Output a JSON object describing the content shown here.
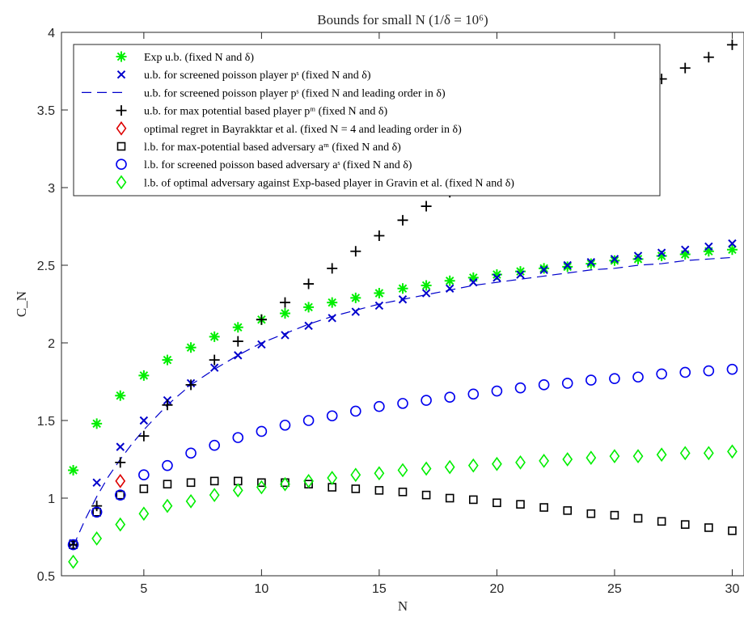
{
  "chart_data": {
    "type": "scatter",
    "title": "Bounds for small N (1/δ = 10⁶)",
    "xlabel": "N",
    "ylabel": "C_N",
    "xlim": [
      1.5,
      30.5
    ],
    "ylim": [
      0.5,
      4
    ],
    "xticks": [
      5,
      10,
      15,
      20,
      25,
      30
    ],
    "yticks": [
      0.5,
      1,
      1.5,
      2,
      2.5,
      3,
      3.5,
      4
    ],
    "grid": false,
    "legend_position": "top-left",
    "series": [
      {
        "name": "Exp u.b. (fixed N and δ)",
        "marker": "asterisk",
        "color": "#00ee00",
        "x": [
          2,
          3,
          4,
          5,
          6,
          7,
          8,
          9,
          10,
          11,
          12,
          13,
          14,
          15,
          16,
          17,
          18,
          19,
          20,
          21,
          22,
          23,
          24,
          25,
          26,
          27,
          28,
          29,
          30
        ],
        "y": [
          1.18,
          1.48,
          1.66,
          1.79,
          1.89,
          1.97,
          2.04,
          2.1,
          2.15,
          2.19,
          2.23,
          2.26,
          2.29,
          2.32,
          2.35,
          2.37,
          2.4,
          2.42,
          2.44,
          2.46,
          2.48,
          2.49,
          2.51,
          2.53,
          2.54,
          2.56,
          2.57,
          2.59,
          2.6
        ]
      },
      {
        "name": "u.b. for screened poisson player pˢ (fixed N and δ)",
        "marker": "x",
        "color": "#0000cc",
        "x": [
          2,
          3,
          4,
          5,
          6,
          7,
          8,
          9,
          10,
          11,
          12,
          13,
          14,
          15,
          16,
          17,
          18,
          19,
          20,
          21,
          22,
          23,
          24,
          25,
          26,
          27,
          28,
          29,
          30
        ],
        "y": [
          0.71,
          1.1,
          1.33,
          1.5,
          1.63,
          1.74,
          1.84,
          1.92,
          1.99,
          2.05,
          2.11,
          2.16,
          2.2,
          2.24,
          2.28,
          2.32,
          2.35,
          2.39,
          2.42,
          2.44,
          2.47,
          2.5,
          2.52,
          2.54,
          2.56,
          2.58,
          2.6,
          2.62,
          2.64
        ]
      },
      {
        "name": "u.b. for screened poisson player pˢ (fixed N and leading order in δ)",
        "marker": "dashed-line",
        "color": "#0000cc",
        "x": [
          2,
          2.5,
          3,
          3.5,
          4,
          4.5,
          5,
          5.5,
          6,
          7,
          8,
          9,
          10,
          11,
          12,
          13,
          14,
          15,
          16,
          17,
          18,
          19,
          20,
          21,
          22,
          23,
          24,
          25,
          26,
          27,
          28,
          29,
          30
        ],
        "y": [
          0.69,
          0.86,
          1.01,
          1.14,
          1.25,
          1.35,
          1.44,
          1.52,
          1.6,
          1.73,
          1.83,
          1.92,
          2.0,
          2.06,
          2.12,
          2.17,
          2.21,
          2.25,
          2.28,
          2.31,
          2.34,
          2.37,
          2.39,
          2.41,
          2.43,
          2.45,
          2.47,
          2.48,
          2.5,
          2.51,
          2.53,
          2.54,
          2.55
        ]
      },
      {
        "name": "u.b. for max potential based player pᵐ (fixed N and δ)",
        "marker": "plus",
        "color": "#000000",
        "x": [
          2,
          3,
          4,
          5,
          6,
          7,
          8,
          9,
          10,
          11,
          12,
          13,
          14,
          15,
          16,
          17,
          18,
          19,
          20,
          21,
          22,
          23,
          24,
          25,
          26,
          27,
          28,
          29,
          30
        ],
        "y": [
          0.7,
          0.95,
          1.23,
          1.4,
          1.6,
          1.73,
          1.89,
          2.01,
          2.15,
          2.26,
          2.38,
          2.48,
          2.59,
          2.69,
          2.79,
          2.88,
          2.97,
          3.06,
          3.14,
          3.22,
          3.3,
          3.38,
          3.45,
          3.52,
          3.59,
          3.7,
          3.77,
          3.84,
          3.92
        ]
      },
      {
        "name": "optimal regret in Bayrakktar et al. (fixed N = 4 and leading order in δ)",
        "marker": "diamond",
        "color": "#dd0000",
        "x": [
          4
        ],
        "y": [
          1.11
        ]
      },
      {
        "name": "l.b. for max-potential based adversary aᵐ (fixed N and δ)",
        "marker": "square",
        "color": "#000000",
        "x": [
          2,
          3,
          4,
          5,
          6,
          7,
          8,
          9,
          10,
          11,
          12,
          13,
          14,
          15,
          16,
          17,
          18,
          19,
          20,
          21,
          22,
          23,
          24,
          25,
          26,
          27,
          28,
          29,
          30
        ],
        "y": [
          0.7,
          0.91,
          1.02,
          1.06,
          1.09,
          1.1,
          1.11,
          1.11,
          1.1,
          1.1,
          1.09,
          1.07,
          1.06,
          1.05,
          1.04,
          1.02,
          1.0,
          0.99,
          0.97,
          0.96,
          0.94,
          0.92,
          0.9,
          0.89,
          0.87,
          0.85,
          0.83,
          0.81,
          0.79
        ]
      },
      {
        "name": "l.b. for screened poisson based adversary aˢ (fixed N and δ)",
        "marker": "circle",
        "color": "#0000ee",
        "x": [
          2,
          3,
          4,
          5,
          6,
          7,
          8,
          9,
          10,
          11,
          12,
          13,
          14,
          15,
          16,
          17,
          18,
          19,
          20,
          21,
          22,
          23,
          24,
          25,
          26,
          27,
          28,
          29,
          30
        ],
        "y": [
          0.7,
          0.91,
          1.02,
          1.15,
          1.21,
          1.29,
          1.34,
          1.39,
          1.43,
          1.47,
          1.5,
          1.53,
          1.56,
          1.59,
          1.61,
          1.63,
          1.65,
          1.67,
          1.69,
          1.71,
          1.73,
          1.74,
          1.76,
          1.77,
          1.78,
          1.8,
          1.81,
          1.82,
          1.83
        ]
      },
      {
        "name": "l.b. of optimal adversary against Exp-based player in Gravin et al. (fixed N and δ)",
        "marker": "diamond",
        "color": "#00ee00",
        "x": [
          2,
          3,
          4,
          5,
          6,
          7,
          8,
          9,
          10,
          11,
          12,
          13,
          14,
          15,
          16,
          17,
          18,
          19,
          20,
          21,
          22,
          23,
          24,
          25,
          26,
          27,
          28,
          29,
          30
        ],
        "y": [
          0.59,
          0.74,
          0.83,
          0.9,
          0.95,
          0.98,
          1.02,
          1.05,
          1.07,
          1.09,
          1.11,
          1.13,
          1.15,
          1.16,
          1.18,
          1.19,
          1.2,
          1.21,
          1.22,
          1.23,
          1.24,
          1.25,
          1.26,
          1.27,
          1.27,
          1.28,
          1.29,
          1.29,
          1.3
        ]
      }
    ]
  }
}
